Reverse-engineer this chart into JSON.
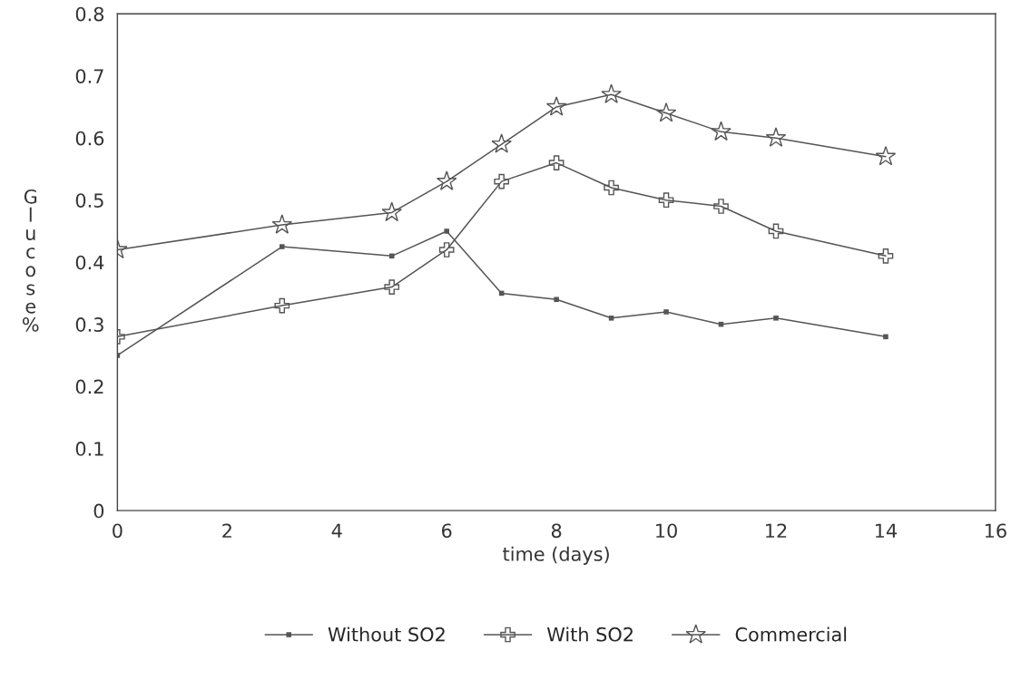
{
  "chart_data": {
    "type": "line",
    "xlabel": "time (days)",
    "ylabel": "Glucose %",
    "xlim": [
      0,
      16
    ],
    "xticks": [
      0,
      2,
      4,
      6,
      8,
      10,
      12,
      14,
      16
    ],
    "ylim": [
      0,
      0.8
    ],
    "yticks": [
      0,
      0.1,
      0.2,
      0.3,
      0.4,
      0.5,
      0.6,
      0.7,
      0.8
    ],
    "grid": false,
    "legend": "bottom",
    "series": [
      {
        "name": "Without SO2",
        "color": "#555555",
        "marker": "square",
        "x": [
          0,
          3,
          5,
          6,
          7,
          8,
          9,
          10,
          11,
          12,
          14
        ],
        "values": [
          0.25,
          0.425,
          0.41,
          0.45,
          0.35,
          0.34,
          0.31,
          0.32,
          0.3,
          0.31,
          0.28
        ]
      },
      {
        "name": "With SO2",
        "color": "#555555",
        "marker": "cross",
        "x": [
          0,
          3,
          5,
          6,
          7,
          8,
          9,
          10,
          11,
          12,
          14
        ],
        "values": [
          0.28,
          0.33,
          0.36,
          0.42,
          0.53,
          0.56,
          0.52,
          0.5,
          0.49,
          0.45,
          0.41
        ]
      },
      {
        "name": "Commercial",
        "color": "#555555",
        "marker": "star",
        "x": [
          0,
          3,
          5,
          6,
          7,
          8,
          9,
          10,
          11,
          12,
          14
        ],
        "values": [
          0.42,
          0.46,
          0.48,
          0.53,
          0.59,
          0.65,
          0.67,
          0.64,
          0.61,
          0.6,
          0.57
        ]
      }
    ]
  }
}
